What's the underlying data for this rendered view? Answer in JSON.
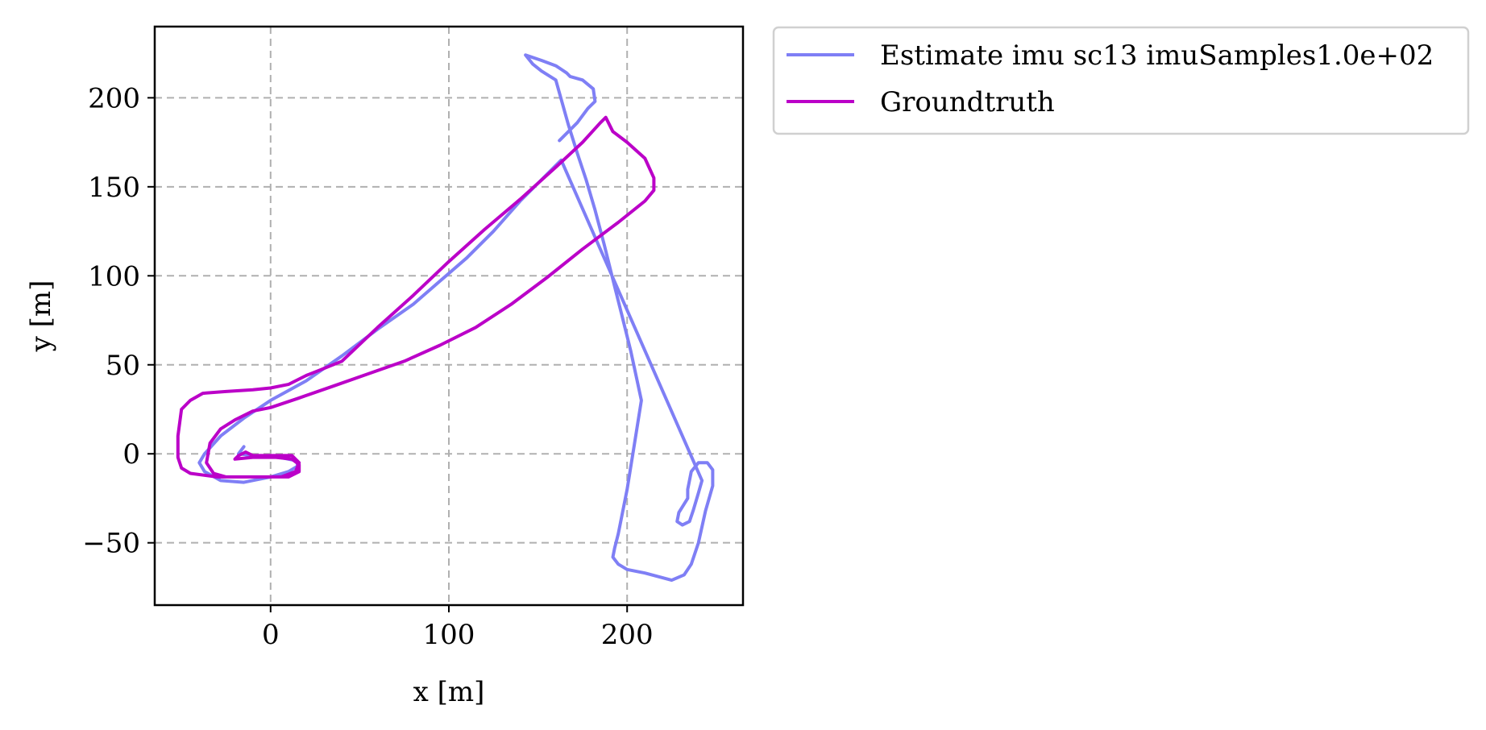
{
  "chart_data": {
    "type": "line",
    "title": "",
    "xlabel": "x [m]",
    "ylabel": "y [m]",
    "xlim": [
      -65,
      265
    ],
    "ylim": [
      -85,
      240
    ],
    "xticks": [
      0,
      100,
      200
    ],
    "xtick_labels": [
      "0",
      "100",
      "200"
    ],
    "yticks": [
      -50,
      0,
      50,
      100,
      150,
      200
    ],
    "ytick_labels": [
      "−50",
      "0",
      "50",
      "100",
      "150",
      "200"
    ],
    "grid": true,
    "legend_position": "outside-top-right",
    "series": [
      {
        "name": "Estimate imu sc13 imuSamples1.0e+02",
        "color": "#7f7ff5",
        "x": [
          162,
          172,
          178,
          182,
          181,
          175,
          168,
          166,
          163,
          160,
          152,
          143,
          147,
          152,
          160,
          167,
          172,
          177,
          182,
          187,
          192,
          197,
          202,
          208,
          204,
          200,
          197,
          195,
          193,
          192,
          195,
          200,
          210,
          225,
          232,
          236,
          240,
          244,
          248,
          248,
          245,
          240,
          236,
          234,
          234,
          229,
          228,
          231,
          235,
          237,
          240,
          242,
          163,
          140,
          125,
          110,
          95,
          80,
          60,
          40,
          20,
          0,
          -15,
          -28,
          -37,
          -40,
          -37,
          -28,
          -15,
          0,
          10,
          15,
          15,
          5,
          -10,
          -18,
          -15
        ],
        "y": [
          176,
          186,
          194,
          198,
          205,
          210,
          212,
          214,
          216,
          218,
          221,
          224,
          219,
          215,
          210,
          185,
          169,
          154,
          137,
          118,
          98,
          78,
          58,
          30,
          5,
          -20,
          -35,
          -45,
          -53,
          -58,
          -62,
          -65,
          -67,
          -71,
          -68,
          -62,
          -50,
          -32,
          -18,
          -9,
          -5,
          -5,
          -10,
          -20,
          -25,
          -33,
          -38,
          -40,
          -38,
          -32,
          -22,
          -15,
          165,
          142,
          125,
          110,
          97,
          84,
          70,
          55,
          41,
          30,
          20,
          10,
          0,
          -5,
          -10,
          -15,
          -16,
          -13,
          -10,
          -7,
          -4,
          -2,
          -1,
          0,
          4
        ],
        "legend_index": 0
      },
      {
        "name": "Groundtruth",
        "color": "#bb00c8",
        "x": [
          40,
          60,
          80,
          100,
          120,
          140,
          160,
          175,
          185,
          188,
          192,
          200,
          210,
          215,
          215,
          210,
          195,
          175,
          155,
          135,
          115,
          95,
          75,
          55,
          35,
          15,
          0,
          -10,
          -20,
          -28,
          -34,
          -36,
          -32,
          -25,
          -15,
          0,
          10,
          16,
          16,
          12,
          3,
          -10,
          -20,
          -18,
          -14,
          -10,
          -2,
          5,
          12,
          16,
          14,
          6,
          -10,
          -30,
          -45,
          -50,
          -52,
          -52,
          -50,
          -45,
          -38,
          -25,
          -10,
          0,
          10,
          20,
          30,
          40
        ],
        "y": [
          52,
          71,
          89,
          108,
          126,
          143,
          161,
          175,
          186,
          189,
          181,
          175,
          166,
          155,
          148,
          142,
          130,
          115,
          99,
          84,
          71,
          61,
          52,
          45,
          38,
          31,
          26,
          24,
          19,
          14,
          6,
          -5,
          -11,
          -13,
          -13,
          -13,
          -13,
          -10,
          -6,
          -3,
          -2,
          -2,
          -3,
          -1,
          1,
          -1,
          -1,
          -1,
          -1,
          -5,
          -10,
          -13,
          -13,
          -13,
          -11,
          -8,
          -2,
          10,
          25,
          30,
          34,
          35,
          36,
          37,
          39,
          44,
          48,
          52
        ],
        "legend_index": 1
      }
    ]
  }
}
